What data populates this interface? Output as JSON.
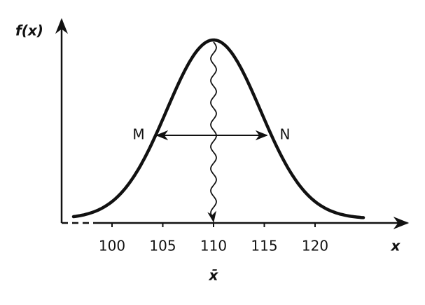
{
  "axis": {
    "x_label": "x",
    "y_label": "f(x)",
    "ticks": [
      100,
      105,
      110,
      115,
      120
    ]
  },
  "mean_label": "x̄",
  "points": {
    "left": "M",
    "right": "N"
  }
}
